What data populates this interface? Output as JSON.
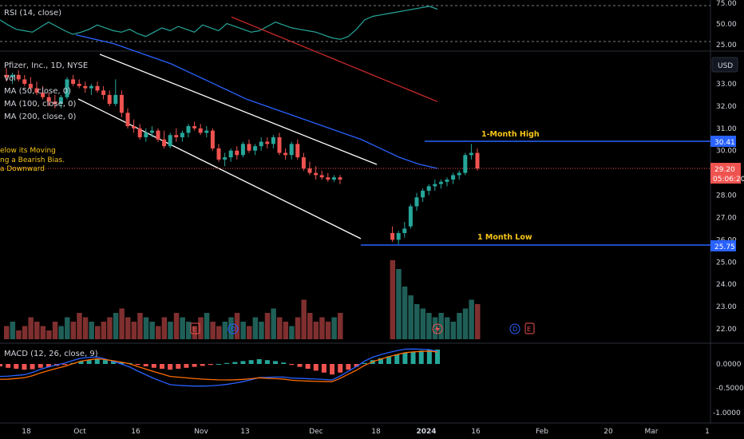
{
  "panels": {
    "rsi_label": "RSI (14, close)",
    "rsi_axis": [
      "75.00",
      "50.00",
      "25.00"
    ],
    "legend": [
      "Pfizer, Inc., 1D, NYSE",
      "Vol",
      "MA (50, close, 0)",
      "MA (100, close, 0)",
      "MA (200, close, 0)"
    ],
    "macd_label": "MACD (12, 26, close, 9)",
    "macd_axis": [
      "0.0000",
      "-0.5000",
      "-1.0000"
    ],
    "note_lines": [
      "elow its Moving",
      "ng a Bearish Bias.",
      "a Downward"
    ]
  },
  "price_axis": {
    "currency": "USD",
    "ticks": [
      "33.00",
      "32.00",
      "31.00",
      "30.00",
      "28.00",
      "27.00",
      "26.00",
      "25.00",
      "24.00",
      "23.00",
      "22.00"
    ],
    "high_tag": "30.41",
    "last_tag": "29.20",
    "countdown": "05:06:20",
    "low_tag": "25.75"
  },
  "annotations": {
    "high": "1-Month High",
    "low": "1 Month Low"
  },
  "time_axis": [
    "18",
    "Oct",
    "16",
    "Nov",
    "13",
    "Dec",
    "18",
    "2024",
    "16",
    "Feb",
    "20",
    "Mar",
    "1"
  ],
  "events": [
    "E",
    "D",
    "D",
    "E"
  ],
  "colors": {
    "up": "#26a69a",
    "down": "#ef5350",
    "ma50": "#2962ff",
    "ma200": "#c62828",
    "level": "#2962ff",
    "channel": "#ffffff"
  },
  "chart_data": {
    "type": "candlestick",
    "symbol": "Pfizer, Inc.",
    "interval": "1D",
    "exchange": "NYSE",
    "ylim": [
      21.5,
      34
    ],
    "candles": [
      [
        33.4,
        33.7,
        33.1,
        33.3
      ],
      [
        33.3,
        33.5,
        33.0,
        33.4
      ],
      [
        33.4,
        33.6,
        33.1,
        33.2
      ],
      [
        33.2,
        33.4,
        32.9,
        33.0
      ],
      [
        33.0,
        33.3,
        32.7,
        32.8
      ],
      [
        32.8,
        33.1,
        32.5,
        32.6
      ],
      [
        32.6,
        32.9,
        32.3,
        32.4
      ],
      [
        32.4,
        32.6,
        32.0,
        32.2
      ],
      [
        32.2,
        32.5,
        31.9,
        32.1
      ],
      [
        32.1,
        32.5,
        31.9,
        32.4
      ],
      [
        32.4,
        33.3,
        32.3,
        33.2
      ],
      [
        33.2,
        33.4,
        32.9,
        33.0
      ],
      [
        33.0,
        33.2,
        32.8,
        32.9
      ],
      [
        32.9,
        33.1,
        32.6,
        32.8
      ],
      [
        32.8,
        33.0,
        32.5,
        32.9
      ],
      [
        32.9,
        33.1,
        32.6,
        32.7
      ],
      [
        32.7,
        32.9,
        32.3,
        32.5
      ],
      [
        32.5,
        32.7,
        32.0,
        32.1
      ],
      [
        32.1,
        33.2,
        32.0,
        32.5
      ],
      [
        32.5,
        32.7,
        31.5,
        31.7
      ],
      [
        31.7,
        31.9,
        31.0,
        31.1
      ],
      [
        31.1,
        31.4,
        30.8,
        31.0
      ],
      [
        31.0,
        31.2,
        30.5,
        30.6
      ],
      [
        30.6,
        31.0,
        30.4,
        30.8
      ],
      [
        30.8,
        31.1,
        30.6,
        30.9
      ],
      [
        30.9,
        31.0,
        30.4,
        30.5
      ],
      [
        30.5,
        30.9,
        30.1,
        30.2
      ],
      [
        30.2,
        30.8,
        30.1,
        30.7
      ],
      [
        30.7,
        31.0,
        30.4,
        30.6
      ],
      [
        30.6,
        30.9,
        30.4,
        30.8
      ],
      [
        30.8,
        31.2,
        30.6,
        31.1
      ],
      [
        31.1,
        31.3,
        30.9,
        31.0
      ],
      [
        31.0,
        31.2,
        30.7,
        30.8
      ],
      [
        30.8,
        31.1,
        30.6,
        30.9
      ],
      [
        30.9,
        31.0,
        30.0,
        30.1
      ],
      [
        30.1,
        30.3,
        29.5,
        29.6
      ],
      [
        29.6,
        29.9,
        29.3,
        29.7
      ],
      [
        29.7,
        30.1,
        29.5,
        30.0
      ],
      [
        30.0,
        30.2,
        29.6,
        29.8
      ],
      [
        29.8,
        30.4,
        29.7,
        30.3
      ],
      [
        30.3,
        30.5,
        29.9,
        30.0
      ],
      [
        30.0,
        30.3,
        29.8,
        30.2
      ],
      [
        30.2,
        30.6,
        30.0,
        30.4
      ],
      [
        30.4,
        30.6,
        30.1,
        30.3
      ],
      [
        30.3,
        30.7,
        30.1,
        30.6
      ],
      [
        30.6,
        30.8,
        29.8,
        29.9
      ],
      [
        29.9,
        30.1,
        29.6,
        29.8
      ],
      [
        29.8,
        30.4,
        29.6,
        30.3
      ],
      [
        30.3,
        30.5,
        29.6,
        29.7
      ],
      [
        29.7,
        29.9,
        29.1,
        29.2
      ],
      [
        29.2,
        29.5,
        28.9,
        29.0
      ],
      [
        29.0,
        29.3,
        28.7,
        28.9
      ],
      [
        28.9,
        29.1,
        28.7,
        28.8
      ],
      [
        28.8,
        29.0,
        28.6,
        28.7
      ],
      [
        28.7,
        28.9,
        28.6,
        28.8
      ],
      [
        28.8,
        28.9,
        28.5,
        28.7
      ],
      [
        26.3,
        26.6,
        25.9,
        26.0
      ],
      [
        26.0,
        26.4,
        25.8,
        26.3
      ],
      [
        26.3,
        26.8,
        26.1,
        26.5
      ],
      [
        26.6,
        27.6,
        26.5,
        27.5
      ],
      [
        27.5,
        28.1,
        27.3,
        27.9
      ],
      [
        27.9,
        28.3,
        27.7,
        28.2
      ],
      [
        28.2,
        28.5,
        28.0,
        28.4
      ],
      [
        28.4,
        28.7,
        28.2,
        28.5
      ],
      [
        28.5,
        28.7,
        28.3,
        28.6
      ],
      [
        28.6,
        28.8,
        28.4,
        28.7
      ],
      [
        28.7,
        29.0,
        28.5,
        28.9
      ],
      [
        28.9,
        29.1,
        28.7,
        29.0
      ],
      [
        29.0,
        29.9,
        28.9,
        29.8
      ],
      [
        29.8,
        30.3,
        29.6,
        29.9
      ],
      [
        29.9,
        30.1,
        29.1,
        29.2
      ]
    ],
    "levels": {
      "one_month_high": 30.41,
      "one_month_low": 25.75,
      "last": 29.2
    },
    "ma_series": [
      {
        "name": "MA (50, close, 0)",
        "values": [
          35.2,
          35.0,
          34.8,
          34.5,
          34.2,
          33.9,
          33.5,
          33.1,
          32.7,
          32.3,
          32.0,
          31.7,
          31.4,
          31.1,
          30.8,
          30.5,
          30.1,
          29.7,
          29.4,
          29.2
        ]
      },
      {
        "name": "MA (200, close, 0)",
        "values": [
          36.0,
          35.8,
          35.6,
          35.4,
          35.2,
          35.0,
          34.8,
          34.6,
          34.4,
          34.2,
          34.0,
          33.8,
          33.6,
          33.4,
          33.2,
          33.0,
          32.8,
          32.6,
          32.4,
          32.2
        ]
      }
    ],
    "rsi": [
      55,
      48,
      42,
      40,
      38,
      45,
      52,
      46,
      40,
      35,
      38,
      42,
      48,
      44,
      40,
      38,
      42,
      36,
      32,
      38,
      44,
      40,
      46,
      42,
      38,
      48,
      44,
      40,
      50,
      46,
      42,
      38,
      40,
      46,
      52,
      48,
      44,
      42,
      40,
      38,
      34,
      30,
      28,
      32,
      42,
      55,
      60,
      62,
      64,
      66,
      68,
      70,
      72,
      74,
      70
    ],
    "volume": [
      3,
      4,
      2,
      3,
      5,
      4,
      3,
      2,
      4,
      3,
      5,
      4,
      6,
      5,
      4,
      3,
      4,
      5,
      6,
      7,
      5,
      4,
      6,
      5,
      4,
      3,
      5,
      4,
      6,
      5,
      4,
      3,
      5,
      6,
      4,
      3,
      4,
      5,
      6,
      4,
      3,
      5,
      4,
      6,
      7,
      5,
      4,
      3,
      5,
      9,
      6,
      4,
      5,
      4,
      5,
      6,
      18,
      16,
      12,
      10,
      8,
      7,
      6,
      5,
      6,
      5,
      4,
      6,
      7,
      9,
      8
    ],
    "macd": [
      -0.05,
      -0.08,
      -0.1,
      -0.12,
      -0.11,
      -0.08,
      -0.06,
      -0.04,
      -0.02,
      0.02,
      0.06,
      0.08,
      0.1,
      0.08,
      0.06,
      0.04,
      0.02,
      -0.02,
      -0.05,
      -0.08,
      -0.1,
      -0.12,
      -0.1,
      -0.08,
      -0.06,
      -0.04,
      -0.02,
      0.0,
      0.02,
      0.04,
      0.06,
      0.08,
      0.1,
      0.08,
      0.06,
      0.03,
      -0.02,
      -0.06,
      -0.1,
      -0.14,
      -0.18,
      -0.22,
      -0.18,
      -0.12,
      -0.06,
      0.02,
      0.08,
      0.12,
      0.16,
      0.2,
      0.24,
      0.26,
      0.28,
      0.3,
      0.3
    ]
  }
}
